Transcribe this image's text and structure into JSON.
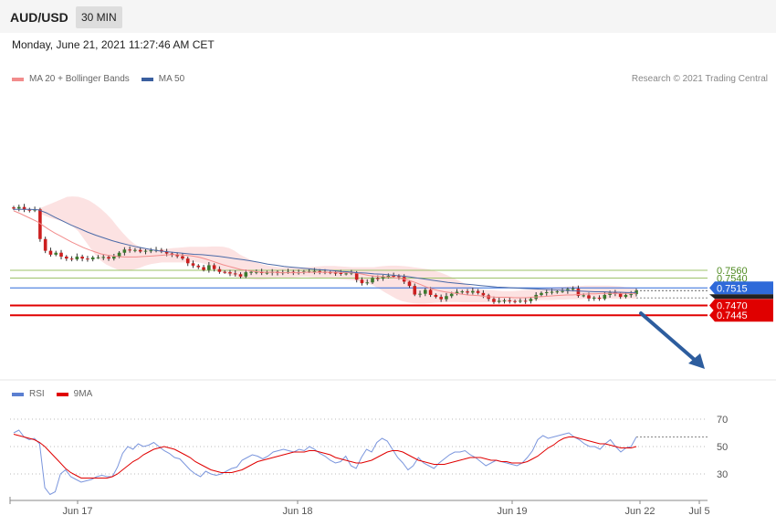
{
  "header": {
    "symbol": "AUD/USD",
    "timeframe": "30 MIN"
  },
  "timestamp": "Monday, June 21, 2021 11:27:46 AM CET",
  "credit": "Research © 2021 Trading Central",
  "legend_main": [
    {
      "label": "MA 20 + Bollinger Bands",
      "color": "#f28c8c"
    },
    {
      "label": "MA 50",
      "color": "#3a5f9f"
    }
  ],
  "legend_rsi": [
    {
      "label": "RSI",
      "color": "#5b7fd1"
    },
    {
      "label": "9MA",
      "color": "#e00000"
    }
  ],
  "colors": {
    "up": "#3c7a2e",
    "down": "#cc1f1f",
    "support": "#e00000",
    "pivot": "#2f6ad9",
    "resistance": "#9dc36a",
    "arrow": "#2d5d9e"
  },
  "chart_data": [
    {
      "type": "candlestick",
      "title": "AUD/USD 30 MIN",
      "x_ticks": [
        "Jun 17",
        "Jun 18",
        "Jun 19",
        "Jun 22",
        "Jul 5"
      ],
      "levels": [
        {
          "value": 0.756,
          "label": "0.7560",
          "kind": "resistance"
        },
        {
          "value": 0.754,
          "label": "0.7540",
          "kind": "resistance"
        },
        {
          "value": 0.7515,
          "label": "0.7515",
          "kind": "pivot"
        },
        {
          "value": 0.747,
          "label": "0.7470",
          "kind": "support"
        },
        {
          "value": 0.7445,
          "label": "0.7445",
          "kind": "support"
        }
      ],
      "closes": [
        0.7718,
        0.7722,
        0.7715,
        0.7713,
        0.7716,
        0.764,
        0.761,
        0.76,
        0.7605,
        0.7595,
        0.759,
        0.7588,
        0.7595,
        0.759,
        0.7588,
        0.7593,
        0.7593,
        0.7594,
        0.759,
        0.7595,
        0.7605,
        0.7613,
        0.7611,
        0.7612,
        0.7608,
        0.761,
        0.7611,
        0.7612,
        0.7608,
        0.7603,
        0.76,
        0.7596,
        0.759,
        0.7578,
        0.7572,
        0.7568,
        0.7561,
        0.7573,
        0.7563,
        0.7556,
        0.7555,
        0.7552,
        0.755,
        0.7544,
        0.7555,
        0.7556,
        0.7556,
        0.7553,
        0.7554,
        0.7556,
        0.7553,
        0.7555,
        0.7556,
        0.7555,
        0.7555,
        0.7557,
        0.7557,
        0.7558,
        0.7556,
        0.7555,
        0.7554,
        0.7553,
        0.7552,
        0.7552,
        0.7554,
        0.7536,
        0.7527,
        0.7529,
        0.754,
        0.7539,
        0.7544,
        0.7546,
        0.7545,
        0.7543,
        0.7531,
        0.752,
        0.7498,
        0.75,
        0.751,
        0.7497,
        0.7492,
        0.7486,
        0.7494,
        0.75,
        0.7505,
        0.7506,
        0.7503,
        0.7507,
        0.7502,
        0.7496,
        0.7487,
        0.7479,
        0.7482,
        0.7483,
        0.7481,
        0.748,
        0.7482,
        0.7481,
        0.7487,
        0.7497,
        0.7502,
        0.7504,
        0.7505,
        0.7506,
        0.7507,
        0.7512,
        0.7513,
        0.7495,
        0.7496,
        0.7488,
        0.749,
        0.7487,
        0.7497,
        0.7503,
        0.75,
        0.7492,
        0.7497,
        0.7499,
        0.7508
      ],
      "ma20": [
        0.7712,
        0.7706,
        0.7699,
        0.7692,
        0.7685,
        0.7675,
        0.7665,
        0.7656,
        0.7648,
        0.764,
        0.7632,
        0.7625,
        0.7618,
        0.7612,
        0.7607,
        0.7602,
        0.7599,
        0.7597,
        0.7595,
        0.7594,
        0.7594,
        0.7594,
        0.7595,
        0.7596,
        0.7597,
        0.7598,
        0.7599,
        0.76,
        0.76,
        0.7599,
        0.7598,
        0.7596,
        0.7593,
        0.7589,
        0.7584,
        0.7579,
        0.7574,
        0.757,
        0.7566,
        0.7562,
        0.756,
        0.7558,
        0.7556,
        0.7555,
        0.7555,
        0.7555,
        0.7554,
        0.7554,
        0.7554,
        0.7554,
        0.7555,
        0.7555,
        0.7555,
        0.7555,
        0.7555,
        0.7555,
        0.7555,
        0.7554,
        0.7554,
        0.7553,
        0.755,
        0.7547,
        0.7545,
        0.7544,
        0.7543,
        0.7542,
        0.754,
        0.7538,
        0.7534,
        0.7529,
        0.7523,
        0.7517,
        0.7512,
        0.7508,
        0.7505,
        0.7503,
        0.7501,
        0.7499,
        0.7497,
        0.7496,
        0.7495,
        0.7493,
        0.7492,
        0.7491,
        0.7491,
        0.7491,
        0.749,
        0.749,
        0.749,
        0.7491,
        0.7492,
        0.7493,
        0.7494,
        0.7495,
        0.7496,
        0.7497,
        0.7497,
        0.7498,
        0.7499,
        0.75,
        0.75,
        0.7501,
        0.7501,
        0.7501,
        0.7501,
        0.7501,
        0.7501,
        0.7501
      ],
      "bb_upper": [
        0.7718,
        0.7724,
        0.773,
        0.7736,
        0.7742,
        0.7748,
        0.7749,
        0.7748,
        0.7744,
        0.7738,
        0.7729,
        0.7718,
        0.7705,
        0.769,
        0.7672,
        0.7655,
        0.764,
        0.7628,
        0.762,
        0.7615,
        0.7612,
        0.7612,
        0.7613,
        0.7615,
        0.7617,
        0.7618,
        0.7619,
        0.762,
        0.762,
        0.762,
        0.762,
        0.7621,
        0.7621,
        0.762,
        0.7617,
        0.761,
        0.76,
        0.7593,
        0.7586,
        0.758,
        0.7575,
        0.7572,
        0.757,
        0.7568,
        0.7568,
        0.7567,
        0.7567,
        0.7567,
        0.7568,
        0.7569,
        0.757,
        0.7571,
        0.7571,
        0.7571,
        0.757,
        0.7569,
        0.7568,
        0.7568,
        0.7568,
        0.7568,
        0.7568,
        0.757,
        0.7571,
        0.7572,
        0.7572,
        0.7571,
        0.757,
        0.7568,
        0.7566,
        0.7564,
        0.7562,
        0.7558,
        0.7554,
        0.7548,
        0.7542,
        0.7535,
        0.7528,
        0.7522,
        0.7516,
        0.7512,
        0.751,
        0.7509,
        0.7508,
        0.7507,
        0.7507,
        0.7507,
        0.7508,
        0.7509,
        0.751,
        0.7511,
        0.7513,
        0.7515,
        0.7516,
        0.7517,
        0.7518,
        0.7519,
        0.752,
        0.752,
        0.7521,
        0.7521,
        0.7521,
        0.7521,
        0.7521,
        0.752,
        0.7519,
        0.7517,
        0.7516,
        0.7514
      ],
      "bb_lower": [
        0.7706,
        0.77,
        0.7694,
        0.769,
        0.7686,
        0.768,
        0.7672,
        0.766,
        0.764,
        0.762,
        0.76,
        0.7585,
        0.7575,
        0.7568,
        0.7562,
        0.756,
        0.756,
        0.7562,
        0.7566,
        0.7572,
        0.7576,
        0.7578,
        0.758,
        0.758,
        0.758,
        0.758,
        0.758,
        0.7581,
        0.7581,
        0.7579,
        0.7575,
        0.7569,
        0.7562,
        0.7555,
        0.7548,
        0.7544,
        0.7541,
        0.7539,
        0.7537,
        0.7536,
        0.7536,
        0.7537,
        0.7538,
        0.7539,
        0.754,
        0.7541,
        0.7542,
        0.7543,
        0.7543,
        0.7542,
        0.7541,
        0.754,
        0.7539,
        0.7538,
        0.7537,
        0.7536,
        0.7535,
        0.7533,
        0.753,
        0.7526,
        0.752,
        0.7512,
        0.7503,
        0.7495,
        0.7487,
        0.7481,
        0.7478,
        0.7476,
        0.7475,
        0.7475,
        0.7476,
        0.7477,
        0.7478,
        0.7479,
        0.7479,
        0.7479,
        0.7478,
        0.7478,
        0.7478,
        0.7478,
        0.7478,
        0.7478,
        0.7478,
        0.7478,
        0.7479,
        0.748,
        0.7481,
        0.7482,
        0.7483,
        0.7483,
        0.7484,
        0.7484,
        0.7484,
        0.7485,
        0.7485,
        0.7486,
        0.7486,
        0.7486,
        0.7487,
        0.7487,
        0.7487,
        0.7487,
        0.7487,
        0.7487,
        0.7487,
        0.7487,
        0.7487,
        0.7487
      ],
      "ma50": [
        0.7716,
        0.7716,
        0.7716,
        0.7715,
        0.7707,
        0.7696,
        0.7686,
        0.7676,
        0.7667,
        0.7658,
        0.765,
        0.7643,
        0.7636,
        0.763,
        0.7625,
        0.762,
        0.7616,
        0.7612,
        0.7609,
        0.7607,
        0.7605,
        0.7603,
        0.7601,
        0.76,
        0.7598,
        0.7596,
        0.7593,
        0.759,
        0.7587,
        0.7584,
        0.758,
        0.7576,
        0.7573,
        0.757,
        0.7568,
        0.7566,
        0.7564,
        0.7562,
        0.7561,
        0.7559,
        0.7557,
        0.7556,
        0.7554,
        0.7553,
        0.7551,
        0.755,
        0.7548,
        0.7546,
        0.7544,
        0.7541,
        0.7538,
        0.7535,
        0.7532,
        0.7529,
        0.7527,
        0.7525,
        0.7523,
        0.7521,
        0.7519,
        0.7517,
        0.7516,
        0.7515,
        0.7514,
        0.7513,
        0.7512,
        0.7511,
        0.751,
        0.7509,
        0.7508,
        0.7507,
        0.7506,
        0.7505,
        0.7505,
        0.7504,
        0.7504,
        0.7503,
        0.7503
      ]
    },
    {
      "type": "line",
      "title": "RSI",
      "y_ticks": [
        70,
        50,
        30
      ],
      "ylim": [
        10,
        80
      ],
      "series": [
        {
          "name": "RSI",
          "values": [
            60,
            62,
            57,
            55,
            56,
            52,
            20,
            15,
            17,
            30,
            33,
            28,
            26,
            24,
            25,
            26,
            28,
            29,
            28,
            28,
            35,
            45,
            50,
            48,
            52,
            50,
            51,
            53,
            50,
            47,
            45,
            42,
            41,
            37,
            33,
            30,
            28,
            32,
            30,
            29,
            30,
            32,
            34,
            35,
            40,
            42,
            44,
            43,
            41,
            43,
            46,
            47,
            48,
            47,
            46,
            48,
            47,
            50,
            48,
            45,
            43,
            40,
            38,
            39,
            43,
            36,
            34,
            42,
            48,
            46,
            53,
            56,
            54,
            48,
            42,
            38,
            33,
            36,
            42,
            38,
            36,
            34,
            38,
            41,
            44,
            46,
            46,
            47,
            44,
            42,
            39,
            36,
            38,
            40,
            39,
            38,
            37,
            36,
            38,
            42,
            47,
            55,
            58,
            56,
            57,
            58,
            59,
            60,
            57,
            55,
            52,
            50,
            50,
            48,
            52,
            55,
            50,
            46,
            49,
            50,
            57
          ]
        },
        {
          "name": "9MA",
          "values": [
            59,
            58,
            57,
            56,
            55,
            53,
            50,
            46,
            42,
            38,
            34,
            31,
            29,
            27,
            27,
            27,
            27,
            27,
            27,
            28,
            30,
            33,
            36,
            39,
            41,
            44,
            46,
            48,
            49,
            50,
            49,
            48,
            46,
            44,
            42,
            39,
            37,
            35,
            33,
            32,
            31,
            31,
            31,
            32,
            33,
            35,
            37,
            39,
            40,
            41,
            42,
            43,
            44,
            45,
            46,
            46,
            46,
            47,
            47,
            46,
            45,
            44,
            42,
            41,
            40,
            39,
            38,
            38,
            39,
            40,
            42,
            44,
            46,
            47,
            47,
            46,
            44,
            42,
            40,
            39,
            38,
            37,
            37,
            37,
            38,
            39,
            40,
            41,
            42,
            42,
            42,
            41,
            40,
            40,
            39,
            39,
            38,
            38,
            38,
            39,
            41,
            43,
            46,
            49,
            51,
            54,
            56,
            57,
            57,
            56,
            55,
            54,
            53,
            52,
            52,
            51,
            50,
            49,
            49,
            49,
            50
          ]
        }
      ]
    }
  ]
}
